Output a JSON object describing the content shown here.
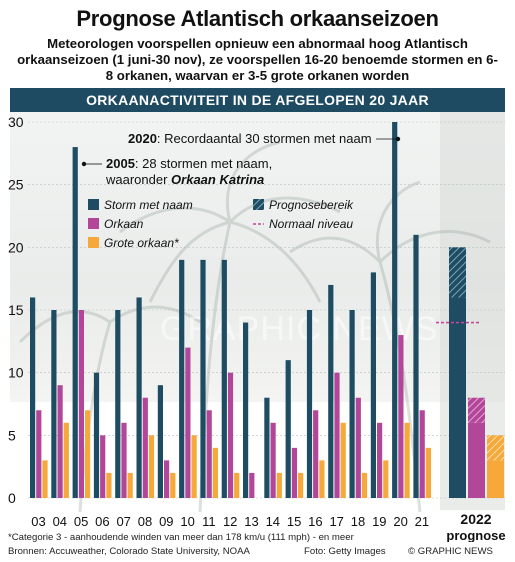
{
  "title": "Prognose Atlantisch orkaanseizoen",
  "subtitle": "Meteorologen voorspellen opnieuw een abnormaal hoog Atlantisch orkaanseizoen (1 juni-30 nov), ze voorspellen 16-20 benoemde stormen en 6-8 orkanen, waarvan er 3-5 grote orkanen worden",
  "banner": "ORKAANACTIVITEIT IN DE AFGELOPEN 20 JAAR",
  "footnote": "*Categorie 3 - aanhoudende winden van meer dan 178 km/u (111 mph) - en meer",
  "sources": "Bronnen: Accuweather, Colorado State University, NOAA",
  "photo_credit": "Foto: Getty Images",
  "copyright": "© GRAPHIC NEWS",
  "watermark": "GRAPHIC NEWS",
  "colors": {
    "storm": "#1d4c63",
    "orkaan": "#b2479a",
    "grote": "#f6a83a",
    "banner": "#1e4a62",
    "normaal": "#c2479a"
  },
  "chart_data": {
    "type": "bar",
    "categories": [
      "03",
      "04",
      "05",
      "06",
      "07",
      "08",
      "09",
      "10",
      "11",
      "12",
      "13",
      "14",
      "15",
      "16",
      "17",
      "18",
      "19",
      "20",
      "21"
    ],
    "series": [
      {
        "name": "Storm met naam",
        "values": [
          16,
          15,
          28,
          10,
          15,
          16,
          9,
          19,
          19,
          19,
          14,
          8,
          11,
          15,
          17,
          15,
          18,
          30,
          21
        ]
      },
      {
        "name": "Orkaan",
        "values": [
          7,
          9,
          15,
          5,
          6,
          8,
          3,
          12,
          7,
          10,
          2,
          6,
          4,
          7,
          10,
          8,
          6,
          13,
          7
        ]
      },
      {
        "name": "Grote orkaan*",
        "values": [
          3,
          6,
          7,
          2,
          2,
          5,
          2,
          5,
          4,
          2,
          0,
          2,
          2,
          3,
          6,
          2,
          3,
          6,
          4
        ]
      }
    ],
    "ylim": [
      0,
      30
    ],
    "yticks": [
      0,
      5,
      10,
      15,
      20,
      25,
      30
    ],
    "forecast": {
      "label": "2022",
      "sublabel": "prognose",
      "storm": [
        16,
        20
      ],
      "orkaan": [
        6,
        8
      ],
      "grote": [
        3,
        5
      ],
      "normaal": {
        "storm": 14,
        "orkaan": 7,
        "grote": 3
      }
    },
    "legend": {
      "storm": "Storm met naam",
      "orkaan": "Orkaan",
      "grote": "Grote orkaan*",
      "bereik": "Prognosebereik",
      "normaal": "Normaal niveau"
    },
    "annotations": [
      {
        "year": "2020",
        "text": ": Recordaantal 30 stormen met naam"
      },
      {
        "year": "2005",
        "text": ": 28 stormen met naam,",
        "line2": "waaronder ",
        "bold": "Orkaan Katrina"
      }
    ]
  }
}
